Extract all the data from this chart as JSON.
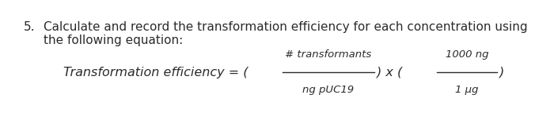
{
  "background_color": "#ffffff",
  "bullet_number": "5.",
  "line1": "Calculate and record the transformation efficiency for each concentration using",
  "line2": "the following equation:",
  "numerator1": "# transformants",
  "denominator1": "ng pUC19",
  "numerator2": "1000 ng",
  "denominator2": "1 μg",
  "body_fontsize": 11.0,
  "eq_fontsize": 11.5,
  "text_color": "#2b2b2b"
}
